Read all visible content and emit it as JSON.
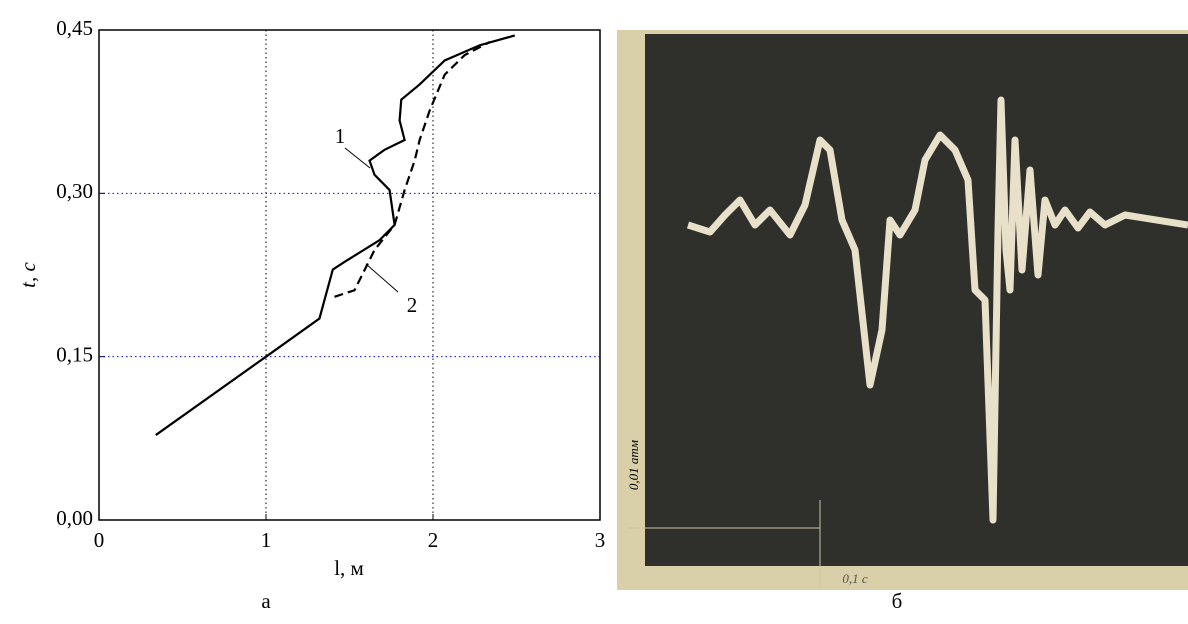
{
  "chart_data": {
    "type": "line",
    "x_label": "l, м",
    "y_label": "t, с",
    "xlim": [
      0,
      3
    ],
    "ylim": [
      0,
      0.45
    ],
    "xticks": [
      0,
      1,
      2,
      3
    ],
    "yticks": [
      {
        "value": 0,
        "label": "0,00"
      },
      {
        "value": 0.15,
        "label": "0,15"
      },
      {
        "value": 0.3,
        "label": "0,30"
      },
      {
        "value": 0.45,
        "label": "0,45"
      }
    ],
    "grid": true,
    "xgrid_color": "#000000",
    "ygrid_color": "#0000ff",
    "series": [
      {
        "name": "1",
        "color": "#000000",
        "dashed": false,
        "x": [
          0.34,
          1.0,
          1.32,
          1.4,
          1.47,
          1.68,
          1.77,
          1.74,
          1.65,
          1.62,
          1.71,
          1.83,
          1.8,
          1.81,
          1.92,
          2.07,
          2.28,
          2.49
        ],
        "values": [
          0.078,
          0.15,
          0.185,
          0.23,
          0.237,
          0.257,
          0.271,
          0.303,
          0.317,
          0.33,
          0.34,
          0.349,
          0.367,
          0.386,
          0.4,
          0.422,
          0.436,
          0.445
        ]
      },
      {
        "name": "2",
        "color": "#000000",
        "dashed": true,
        "x": [
          1.41,
          1.53,
          1.65,
          1.77,
          1.83,
          1.89,
          1.92,
          1.98,
          2.07,
          2.19,
          2.34
        ],
        "values": [
          0.205,
          0.211,
          0.248,
          0.271,
          0.303,
          0.33,
          0.349,
          0.376,
          0.409,
          0.427,
          0.439
        ]
      }
    ],
    "caption": "а"
  },
  "photo": {
    "caption": "б",
    "pressure_scale": "0,01 атм",
    "time_scale": "0,1 с"
  }
}
